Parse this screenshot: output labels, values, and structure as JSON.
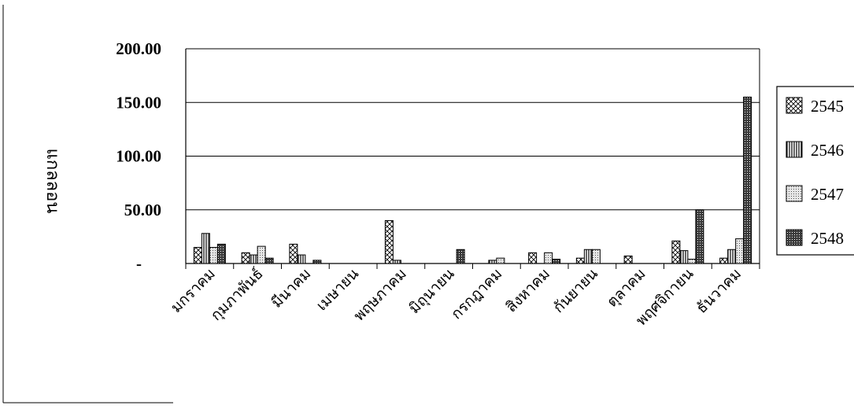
{
  "chart_data": {
    "type": "bar",
    "title": "",
    "xlabel": "",
    "ylabel": "แกลลอน",
    "ylim": [
      0,
      200
    ],
    "y_ticks": [
      "-",
      "50.00",
      "100.00",
      "150.00",
      "200.00"
    ],
    "grid": true,
    "legend_position": "right",
    "categories": [
      "มกราคม",
      "กุมภาพันธ์",
      "มีนาคม",
      "เมษายน",
      "พฤษภาคม",
      "มิถุนายน",
      "กรกฎาคม",
      "สิงหาคม",
      "กันยายน",
      "ตุลาคม",
      "พฤศจิกายน",
      "ธันวาคม"
    ],
    "series": [
      {
        "name": "2545",
        "pattern": "crosshatch",
        "values": [
          15,
          10,
          18,
          0,
          40,
          0,
          0,
          10,
          5,
          7,
          21,
          5
        ]
      },
      {
        "name": "2546",
        "pattern": "vertical-lines",
        "values": [
          28,
          8,
          8,
          0,
          3,
          0,
          3,
          0,
          13,
          0,
          12,
          13
        ]
      },
      {
        "name": "2547",
        "pattern": "light-dots",
        "values": [
          15,
          16,
          0,
          0,
          0,
          0,
          5,
          10,
          13,
          0,
          4,
          23
        ]
      },
      {
        "name": "2548",
        "pattern": "dark-dots",
        "values": [
          18,
          5,
          3,
          0,
          0,
          13,
          0,
          4,
          0,
          0,
          50,
          155
        ]
      }
    ]
  }
}
